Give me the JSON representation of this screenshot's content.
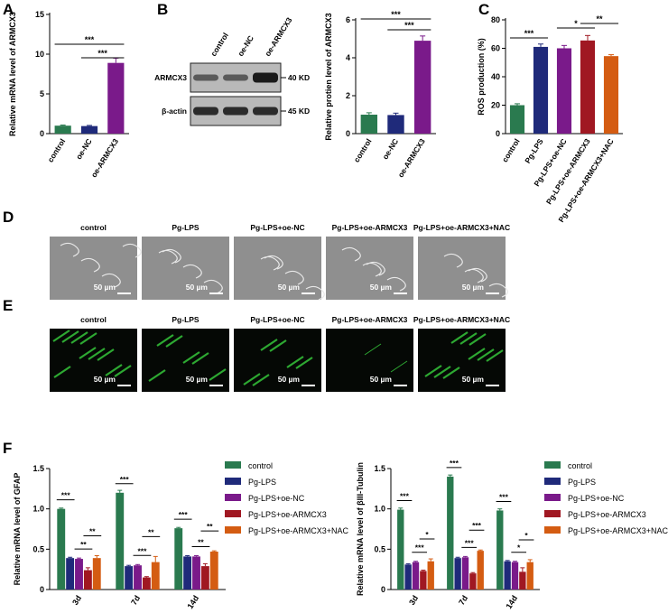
{
  "colors": {
    "green": "#2a7a4f",
    "navy": "#1f2a7a",
    "purple": "#7a1a8a",
    "darkred": "#a01822",
    "orange": "#d45c12",
    "fluor_green": "#35c43a",
    "micro_gray": "#8f8f8f"
  },
  "panel_letters": [
    "A",
    "B",
    "C",
    "D",
    "E",
    "F"
  ],
  "panelB_blot": {
    "lanes": [
      "control",
      "oe-NC",
      "oe-ARMCX3"
    ],
    "rows": [
      {
        "label": "ARMCX3",
        "size": "40 KD"
      },
      {
        "label": "β-actin",
        "size": "45 KD"
      }
    ]
  },
  "images": {
    "labels": [
      "control",
      "Pg-LPS",
      "Pg-LPS+oe-NC",
      "Pg-LPS+oe-ARMCX3",
      "Pg-LPS+oe-ARMCX3+NAC"
    ],
    "scale_bar": "50 µm"
  },
  "legend": [
    "control",
    "Pg-LPS",
    "Pg-LPS+oe-NC",
    "Pg-LPS+oe-ARMCX3",
    "Pg-LPS+oe-ARMCX3+NAC"
  ],
  "chart_data": [
    {
      "panel": "A",
      "type": "bar",
      "categories": [
        "control",
        "oe-NC",
        "oe-ARMCX3"
      ],
      "values": [
        1.0,
        0.95,
        8.9
      ],
      "errors": [
        0.08,
        0.08,
        0.6
      ],
      "ylabel": "Relative mRNA level of ARMCX3",
      "ylim": [
        0,
        15
      ],
      "yticks": [
        0,
        5,
        10,
        15
      ],
      "significance": [
        {
          "from": 0,
          "to": 2,
          "label": "***"
        },
        {
          "from": 1,
          "to": 2,
          "label": "***"
        }
      ]
    },
    {
      "panel": "B",
      "type": "bar",
      "categories": [
        "control",
        "oe-NC",
        "oe-ARMCX3"
      ],
      "values": [
        1.0,
        0.98,
        4.9
      ],
      "errors": [
        0.1,
        0.1,
        0.25
      ],
      "ylabel": "Relative protien level of ARMCX3",
      "ylim": [
        0,
        6
      ],
      "yticks": [
        0,
        2,
        4,
        6
      ],
      "significance": [
        {
          "from": 0,
          "to": 2,
          "label": "***"
        },
        {
          "from": 1,
          "to": 2,
          "label": "***"
        }
      ]
    },
    {
      "panel": "C",
      "type": "bar",
      "categories": [
        "control",
        "Pg-LPS",
        "Pg-LPS+oe-NC",
        "Pg-LPS+oe-ARMCX3",
        "Pg-LPS+oe-ARMCX3+NAC"
      ],
      "values": [
        20,
        61,
        60,
        65.5,
        54.5
      ],
      "errors": [
        1,
        2,
        2,
        3.5,
        1
      ],
      "ylabel": "ROS production (%)",
      "ylim": [
        0,
        80
      ],
      "yticks": [
        0,
        20,
        40,
        60,
        80
      ],
      "significance": [
        {
          "from": 0,
          "to": 1,
          "label": "***"
        },
        {
          "from": 2,
          "to": 3,
          "label": "*"
        },
        {
          "from": 3,
          "to": 4,
          "label": "**"
        }
      ]
    },
    {
      "panel": "F-left",
      "type": "bar",
      "categories": [
        "3d",
        "7d",
        "14d"
      ],
      "series": [
        {
          "name": "control",
          "values": [
            1.0,
            1.2,
            0.76
          ],
          "errors": [
            0.01,
            0.03,
            0.01
          ]
        },
        {
          "name": "Pg-LPS",
          "values": [
            0.39,
            0.29,
            0.41
          ],
          "errors": [
            0.01,
            0.01,
            0.01
          ]
        },
        {
          "name": "Pg-LPS+oe-NC",
          "values": [
            0.38,
            0.3,
            0.41
          ],
          "errors": [
            0.01,
            0.01,
            0.01
          ]
        },
        {
          "name": "Pg-LPS+oe-ARMCX3",
          "values": [
            0.24,
            0.15,
            0.29
          ],
          "errors": [
            0.03,
            0.01,
            0.03
          ]
        },
        {
          "name": "Pg-LPS+oe-ARMCX3+NAC",
          "values": [
            0.39,
            0.34,
            0.47
          ],
          "errors": [
            0.03,
            0.07,
            0.01
          ]
        }
      ],
      "ylabel": "Relative mRNA level of GFAP",
      "ylim": [
        0,
        1.5
      ],
      "yticks": [
        0,
        0.5,
        1.0,
        1.5
      ],
      "significance": [
        {
          "group": 0,
          "from": 0,
          "to": 1,
          "label": "***"
        },
        {
          "group": 0,
          "from": 2,
          "to": 3,
          "label": "**"
        },
        {
          "group": 0,
          "from": 3,
          "to": 4,
          "label": "**"
        },
        {
          "group": 1,
          "from": 0,
          "to": 1,
          "label": "***"
        },
        {
          "group": 1,
          "from": 2,
          "to": 3,
          "label": "***"
        },
        {
          "group": 1,
          "from": 3,
          "to": 4,
          "label": "**"
        },
        {
          "group": 2,
          "from": 0,
          "to": 1,
          "label": "***"
        },
        {
          "group": 2,
          "from": 2,
          "to": 3,
          "label": "**"
        },
        {
          "group": 2,
          "from": 3,
          "to": 4,
          "label": "**"
        }
      ]
    },
    {
      "panel": "F-right",
      "type": "bar",
      "categories": [
        "3d",
        "7d",
        "14d"
      ],
      "series": [
        {
          "name": "control",
          "values": [
            0.99,
            1.4,
            0.98
          ],
          "errors": [
            0.02,
            0.02,
            0.02
          ]
        },
        {
          "name": "Pg-LPS",
          "values": [
            0.31,
            0.39,
            0.35
          ],
          "errors": [
            0.01,
            0.01,
            0.01
          ]
        },
        {
          "name": "Pg-LPS+oe-NC",
          "values": [
            0.34,
            0.4,
            0.34
          ],
          "errors": [
            0.01,
            0.01,
            0.01
          ]
        },
        {
          "name": "Pg-LPS+oe-ARMCX3",
          "values": [
            0.23,
            0.2,
            0.22
          ],
          "errors": [
            0.01,
            0.01,
            0.05
          ]
        },
        {
          "name": "Pg-LPS+oe-ARMCX3+NAC",
          "values": [
            0.35,
            0.48,
            0.34
          ],
          "errors": [
            0.03,
            0.01,
            0.03
          ]
        }
      ],
      "ylabel": "Relative mRNA level of βIII-Tubulin",
      "ylim": [
        0,
        1.5
      ],
      "yticks": [
        0,
        0.5,
        1.0,
        1.5
      ],
      "significance": [
        {
          "group": 0,
          "from": 0,
          "to": 1,
          "label": "***"
        },
        {
          "group": 0,
          "from": 2,
          "to": 3,
          "label": "***"
        },
        {
          "group": 0,
          "from": 3,
          "to": 4,
          "label": "*"
        },
        {
          "group": 1,
          "from": 0,
          "to": 1,
          "label": "***"
        },
        {
          "group": 1,
          "from": 2,
          "to": 3,
          "label": "***"
        },
        {
          "group": 1,
          "from": 3,
          "to": 4,
          "label": "***"
        },
        {
          "group": 2,
          "from": 0,
          "to": 1,
          "label": "***"
        },
        {
          "group": 2,
          "from": 2,
          "to": 3,
          "label": "*"
        },
        {
          "group": 2,
          "from": 3,
          "to": 4,
          "label": "*"
        }
      ]
    }
  ]
}
